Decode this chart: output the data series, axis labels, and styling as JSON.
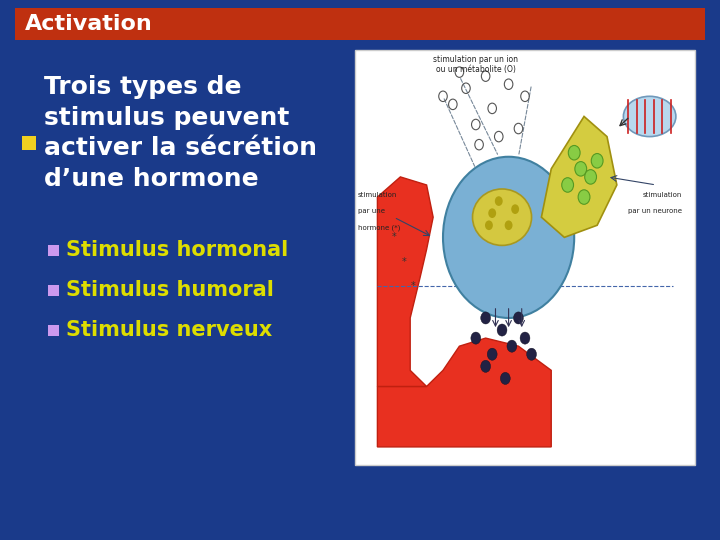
{
  "title": "Activation",
  "title_bg_color": "#bf3010",
  "title_text_color": "#ffffff",
  "slide_bg_color": "#1a3a8a",
  "main_bullet_marker_color": "#f0d020",
  "main_text": "Trois types de\nstimulus peuvent\nactiver la sécrétion\nd’une hormone",
  "main_text_color": "#ffffff",
  "sub_bullet_marker_color": "#cc99ee",
  "sub_text_color": "#dddd00",
  "sub_items": [
    "Stimulus hormonal",
    "Stimulus humoral",
    "Stimulus nerveux"
  ],
  "title_fontsize": 16,
  "main_fontsize": 18,
  "sub_fontsize": 15
}
